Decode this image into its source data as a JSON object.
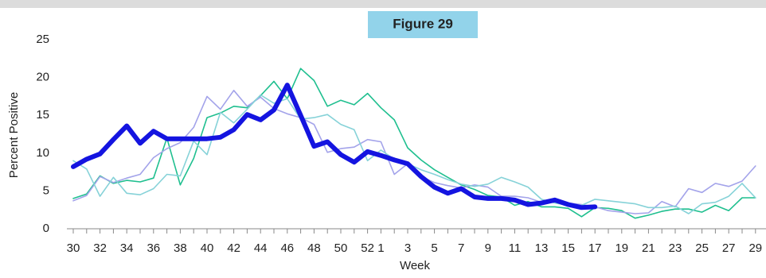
{
  "chart_data": {
    "type": "line",
    "title": "Figure 29",
    "ylabel": "Percent Positive",
    "xlabel": "Week",
    "categories": [
      "30",
      null,
      "32",
      null,
      "34",
      null,
      "36",
      null,
      "38",
      null,
      "40",
      null,
      "42",
      null,
      "44",
      null,
      "46",
      null,
      "48",
      null,
      "50",
      null,
      "52",
      "1",
      null,
      "3",
      null,
      "5",
      null,
      "7",
      null,
      "9",
      null,
      "11",
      null,
      "13",
      null,
      "15",
      null,
      "17",
      null,
      "19",
      null,
      "21",
      null,
      "23",
      null,
      "25",
      null,
      "27",
      null,
      "29"
    ],
    "ylim": [
      0,
      25
    ],
    "yticks": [
      0,
      5,
      10,
      15,
      20,
      25
    ],
    "series": [
      {
        "color": "#1fbf8f",
        "values": [
          4.0,
          4.6,
          7.0,
          6.0,
          6.4,
          6.2,
          6.7,
          12.0,
          5.8,
          9.3,
          14.7,
          15.3,
          16.2,
          16.0,
          17.6,
          19.5,
          17.2,
          21.2,
          19.6,
          16.2,
          17.0,
          16.4,
          17.9,
          16.0,
          14.4,
          10.7,
          9.1,
          7.8,
          6.8,
          5.8,
          5.2,
          4.4,
          4.2,
          3.1,
          3.6,
          2.9,
          2.9,
          2.7,
          1.6,
          2.8,
          2.7,
          2.4,
          1.4,
          1.8,
          2.3,
          2.6,
          2.6,
          2.2,
          3.1,
          2.4,
          4.1,
          4.1
        ]
      },
      {
        "color": "#a3a3ea",
        "values": [
          3.7,
          4.4,
          6.9,
          6.1,
          6.7,
          7.2,
          9.4,
          10.6,
          11.4,
          13.4,
          17.5,
          15.8,
          18.3,
          16.2,
          17.4,
          15.9,
          15.2,
          14.7,
          13.8,
          10.1,
          10.6,
          10.8,
          11.8,
          11.5,
          7.2,
          8.6,
          6.9,
          6.1,
          5.7,
          5.4,
          5.8,
          5.5,
          4.3,
          4.3,
          4.1,
          3.5,
          3.6,
          3.4,
          3.2,
          2.9,
          2.4,
          2.2,
          2.0,
          2.1,
          3.6,
          2.9,
          5.3,
          4.8,
          6.0,
          5.6,
          6.3,
          8.3
        ]
      },
      {
        "color": "#86d2d8",
        "values": [
          9.0,
          7.9,
          4.3,
          6.8,
          4.7,
          4.5,
          5.3,
          7.2,
          7.0,
          11.6,
          9.8,
          15.4,
          14.0,
          15.8,
          17.7,
          16.6,
          17.2,
          14.5,
          14.7,
          15.1,
          13.8,
          13.1,
          9.0,
          10.4,
          9.2,
          8.6,
          7.8,
          7.2,
          6.5,
          5.9,
          5.6,
          5.9,
          6.8,
          6.2,
          5.5,
          3.9,
          3.4,
          3.1,
          3.1,
          3.9,
          3.7,
          3.5,
          3.3,
          2.8,
          2.8,
          3.0,
          2.0,
          3.3,
          3.5,
          4.3,
          6.0,
          4.1
        ]
      },
      {
        "color": "#1414e0",
        "values": [
          8.2,
          9.2,
          9.9,
          11.8,
          13.6,
          11.3,
          12.9,
          11.9,
          11.9,
          11.9,
          11.9,
          12.1,
          13.1,
          15.1,
          14.4,
          15.7,
          19.0,
          15.0,
          10.9,
          11.5,
          9.8,
          8.8,
          10.2,
          9.7,
          9.1,
          8.6,
          6.9,
          5.5,
          4.7,
          5.3,
          4.2,
          4.0,
          4.0,
          3.8,
          3.2,
          3.4,
          3.8,
          3.2,
          2.8,
          2.9,
          null,
          null,
          null,
          null,
          null,
          null,
          null,
          null,
          null,
          null,
          null,
          null
        ]
      }
    ]
  }
}
